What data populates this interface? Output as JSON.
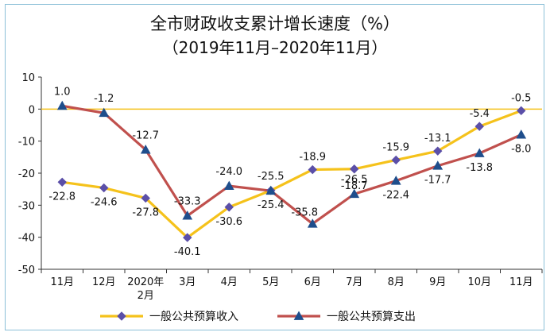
{
  "chart_data": {
    "type": "line",
    "title": "全市财政收支累计增长速度（%）",
    "subtitle": "（2019年11月–2020年11月）",
    "categories": [
      "11月",
      "12月",
      "2020年\n2月",
      "3月",
      "4月",
      "5月",
      "6月",
      "7月",
      "8月",
      "9月",
      "10月",
      "11月"
    ],
    "ylim": [
      -50,
      10
    ],
    "yticks": [
      10,
      0,
      -10,
      -20,
      -30,
      -40,
      -50
    ],
    "grid": false,
    "legend_position": "bottom",
    "series": [
      {
        "name": "一般公共预算收入",
        "values": [
          -22.8,
          -24.6,
          -27.8,
          -40.1,
          -30.6,
          -25.4,
          -18.9,
          -18.7,
          -15.9,
          -13.1,
          -5.4,
          -0.5
        ],
        "color": "#f5c21b",
        "marker": "diamond",
        "marker_color": "#5b4fa8"
      },
      {
        "name": "一般公共预算支出",
        "values": [
          1.0,
          -1.2,
          -12.7,
          -33.3,
          -24.0,
          -25.5,
          -35.8,
          -26.5,
          -22.4,
          -17.7,
          -13.8,
          -8.0
        ],
        "color": "#c0504d",
        "marker": "triangle",
        "marker_color": "#1f4e8c"
      }
    ],
    "zero_line_color": "#f5c21b"
  }
}
